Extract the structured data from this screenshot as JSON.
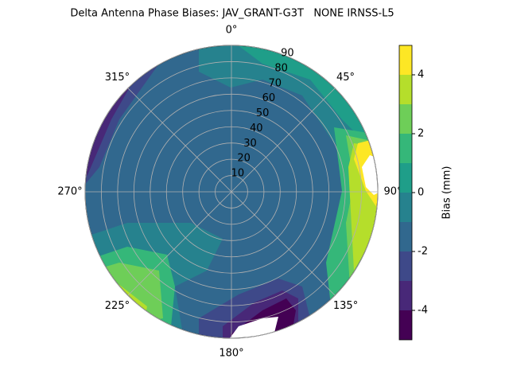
{
  "chart_data": {
    "type": "polar_contour",
    "title": "Delta Antenna Phase Biases: JAV_GRANT-G3T   NONE IRNSS-L5",
    "theta_ticks": [
      {
        "value": 0,
        "label": "0°"
      },
      {
        "value": 45,
        "label": "45°"
      },
      {
        "value": 90,
        "label": "90°"
      },
      {
        "value": 135,
        "label": "135°"
      },
      {
        "value": 180,
        "label": "180°"
      },
      {
        "value": 225,
        "label": "225°"
      },
      {
        "value": 270,
        "label": "270°"
      },
      {
        "value": 315,
        "label": "315°"
      }
    ],
    "rlim": [
      0,
      90
    ],
    "rticks": [
      10,
      20,
      30,
      40,
      50,
      60,
      70,
      80,
      90
    ],
    "grid": true,
    "colorbar": {
      "label": "Bias (mm)",
      "levels": [
        -5,
        -4,
        -3,
        -2,
        -1,
        0,
        1,
        2,
        3,
        4,
        5
      ],
      "colors": [
        "#440154",
        "#482878",
        "#3e4989",
        "#31688e",
        "#26828e",
        "#1f9e89",
        "#35b779",
        "#6ece58",
        "#b5de2b",
        "#fde725"
      ],
      "ylim": [
        -5,
        5
      ],
      "yticks": [
        -4,
        -2,
        0,
        2,
        4
      ]
    }
  }
}
